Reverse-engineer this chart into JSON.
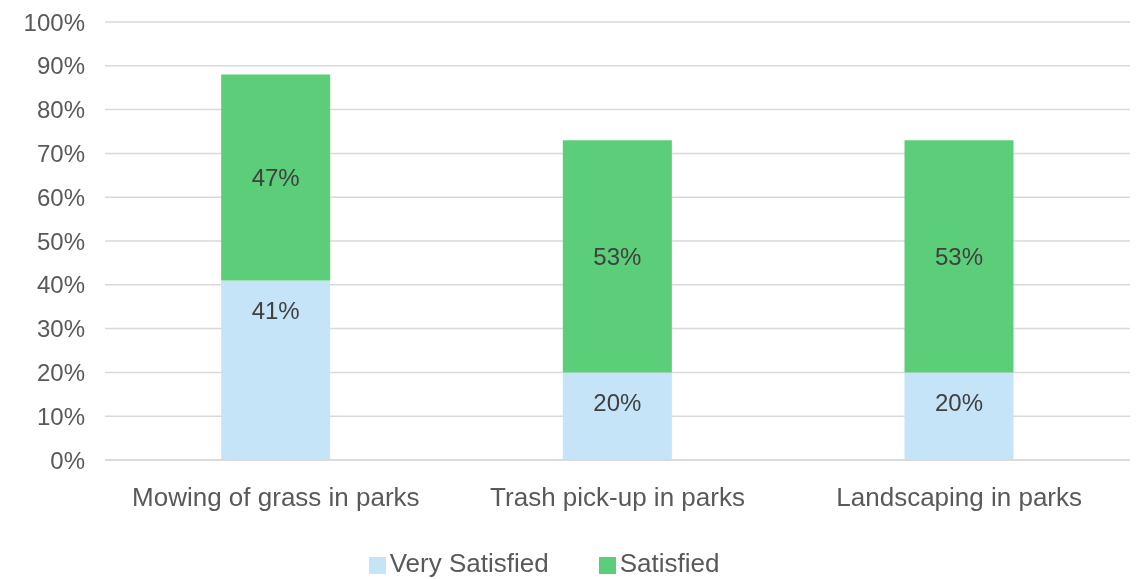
{
  "chart_data": {
    "type": "bar",
    "stacked": true,
    "categories": [
      "Mowing of grass in parks",
      "Trash pick-up in parks",
      "Landscaping in parks"
    ],
    "series": [
      {
        "name": "Very Satisfied",
        "color": "#c5e4f8",
        "values": [
          41,
          20,
          20
        ],
        "value_labels": [
          "41%",
          "20%",
          "20%"
        ]
      },
      {
        "name": "Satisfied",
        "color": "#5ccd78",
        "values": [
          47,
          53,
          53
        ],
        "value_labels": [
          "47%",
          "53%",
          "53%"
        ]
      }
    ],
    "ylim": [
      0,
      100
    ],
    "yticks": [
      {
        "value": 0,
        "label": "0%"
      },
      {
        "value": 10,
        "label": "10%"
      },
      {
        "value": 20,
        "label": "20%"
      },
      {
        "value": 30,
        "label": "30%"
      },
      {
        "value": 40,
        "label": "40%"
      },
      {
        "value": 50,
        "label": "50%"
      },
      {
        "value": 60,
        "label": "60%"
      },
      {
        "value": 70,
        "label": "70%"
      },
      {
        "value": 80,
        "label": "80%"
      },
      {
        "value": 90,
        "label": "90%"
      },
      {
        "value": 100,
        "label": "100%"
      }
    ],
    "grid": "y",
    "legend": "bottom"
  }
}
